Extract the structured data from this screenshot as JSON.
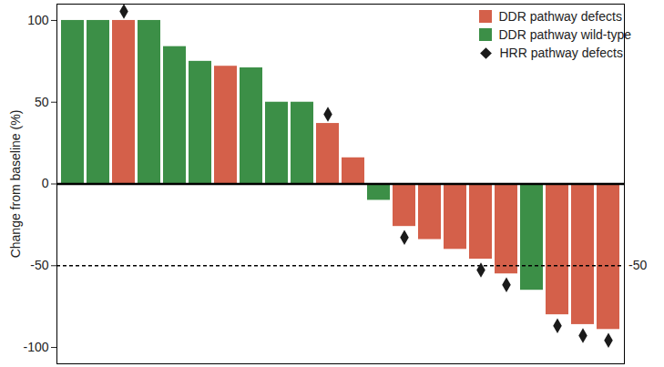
{
  "chart_data": {
    "type": "bar",
    "y_label": "Change from baseline (%)",
    "categories": [
      null,
      null,
      null,
      null,
      null,
      null,
      null,
      null,
      null,
      null,
      null,
      null,
      null,
      null,
      null,
      null,
      null,
      null,
      null,
      null,
      null,
      null
    ],
    "series": [
      {
        "name": "DDR pathway defects",
        "color": "#d4604a",
        "values": [
          null,
          null,
          100,
          null,
          null,
          null,
          72,
          null,
          null,
          null,
          37,
          16,
          null,
          -26,
          -34,
          -40,
          -46,
          -55,
          null,
          -80,
          -86,
          -89
        ]
      },
      {
        "name": "DDR pathway wild-type",
        "color": "#3c8f47",
        "values": [
          100,
          100,
          null,
          100,
          84,
          75,
          null,
          71,
          50,
          50,
          null,
          null,
          -10,
          null,
          null,
          null,
          null,
          null,
          -65,
          null,
          null,
          null
        ]
      },
      {
        "name": "HRR pathway defects",
        "type": "scatter",
        "marker": "diamond",
        "color": "#1a1a1a",
        "values": [
          null,
          null,
          100,
          null,
          null,
          null,
          null,
          null,
          null,
          null,
          37,
          null,
          null,
          -26,
          null,
          null,
          -46,
          -55,
          null,
          -80,
          -86,
          -89
        ]
      }
    ],
    "ylim": [
      -110,
      110
    ],
    "yticks": [
      -100,
      -50,
      0,
      50,
      100
    ],
    "tick_labels": "y",
    "legend": "top-right",
    "annotations": [
      {
        "text": "-50",
        "y": -50,
        "line_style": "dashed"
      }
    ]
  }
}
